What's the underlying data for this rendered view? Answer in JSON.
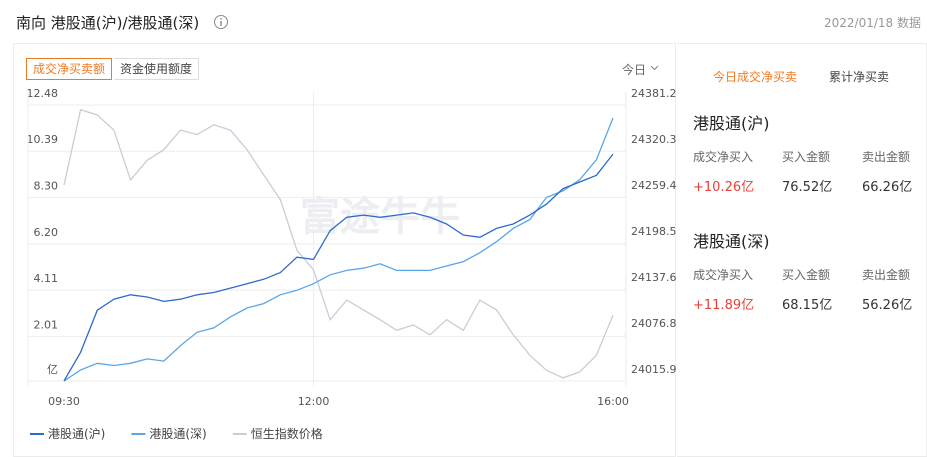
{
  "header": {
    "title": "南向 港股通(沪)/港股通(深)",
    "date": "2022/01/18 数据"
  },
  "tabs": [
    "成交净买卖额",
    "资金使用额度"
  ],
  "period": "今日",
  "watermark": "富途牛牛",
  "chart_data": {
    "type": "line",
    "categories": [
      "09:30",
      null,
      null,
      null,
      null,
      null,
      null,
      null,
      null,
      null,
      null,
      null,
      null,
      null,
      null,
      "12:00",
      null,
      null,
      null,
      null,
      null,
      null,
      null,
      null,
      null,
      null,
      null,
      null,
      null,
      null,
      null,
      null,
      null,
      "16:00"
    ],
    "series": [
      {
        "name": "港股通(沪)",
        "color": "#2f6bcb",
        "values": [
          0,
          1.3,
          3.2,
          3.7,
          3.9,
          3.8,
          3.6,
          3.7,
          3.9,
          4.0,
          4.2,
          4.4,
          4.6,
          4.9,
          5.6,
          5.5,
          6.8,
          7.4,
          7.5,
          7.4,
          7.5,
          7.6,
          7.4,
          7.1,
          6.6,
          6.5,
          6.9,
          7.1,
          7.5,
          8.0,
          8.7,
          9.0,
          9.3,
          10.26
        ]
      },
      {
        "name": "港股通(深)",
        "color": "#5aa6e6",
        "values": [
          0,
          0.5,
          0.8,
          0.7,
          0.8,
          1.0,
          0.9,
          1.6,
          2.2,
          2.4,
          2.9,
          3.3,
          3.5,
          3.9,
          4.1,
          4.4,
          4.8,
          5.0,
          5.1,
          5.3,
          5.0,
          5.0,
          5.0,
          5.2,
          5.4,
          5.8,
          6.3,
          6.9,
          7.3,
          8.3,
          8.6,
          9.1,
          10.0,
          11.89
        ]
      },
      {
        "name": "恒生指数价格",
        "color": "#c8cdd8",
        "axis": "y2",
        "values": [
          24275,
          24375,
          24368,
          24348,
          24282,
          24308,
          24322,
          24348,
          24342,
          24355,
          24348,
          24322,
          24289,
          24256,
          24189,
          24163,
          24097,
          24123,
          24110,
          24097,
          24083,
          24090,
          24077,
          24097,
          24083,
          24123,
          24110,
          24077,
          24050,
          24030,
          24020,
          24028,
          24050,
          24103
        ]
      }
    ],
    "ylim": [
      0,
      12.48
    ],
    "yticks": [
      {
        "value": 0,
        "label": "亿"
      },
      2.01,
      4.11,
      {
        "value": 6.2,
        "label": "6.20"
      },
      {
        "value": 8.3,
        "label": "8.30"
      },
      10.39,
      12.48
    ],
    "y2lim": [
      24015.9,
      24381.2
    ],
    "y2ticks": [
      24015.9,
      24076.8,
      24137.6,
      24198.5,
      24259.4,
      24320.3,
      24381.2
    ],
    "grid": true
  },
  "side_tabs": [
    "今日成交净买卖",
    "累计净买卖"
  ],
  "sections": [
    {
      "title": "港股通(沪)",
      "columns": [
        "成交净买入",
        "买入金额",
        "卖出金额"
      ],
      "values": [
        "+10.26亿",
        "76.52亿",
        "66.26亿"
      ]
    },
    {
      "title": "港股通(深)",
      "columns": [
        "成交净买入",
        "买入金额",
        "卖出金额"
      ],
      "values": [
        "+11.89亿",
        "68.15亿",
        "56.26亿"
      ]
    }
  ]
}
